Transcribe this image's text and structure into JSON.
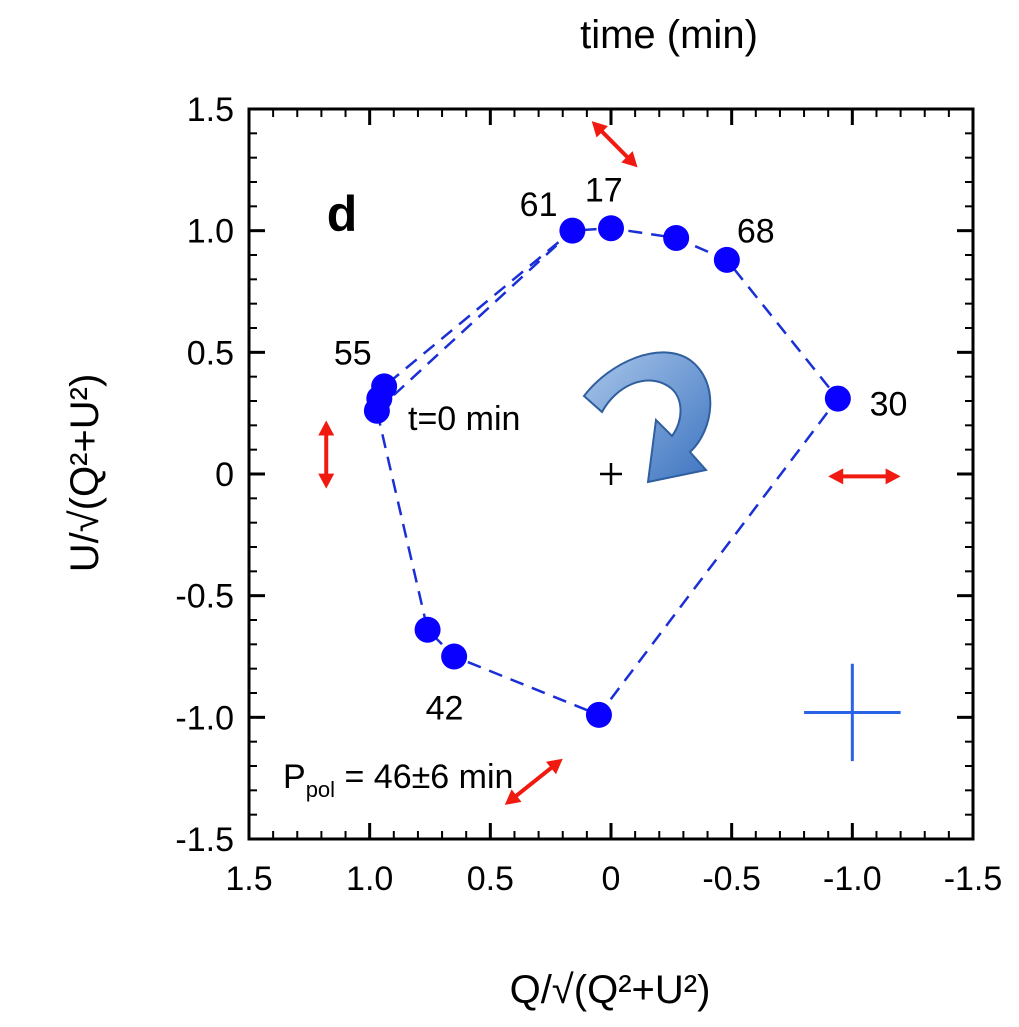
{
  "chart_data": {
    "type": "scatter",
    "panel_label": "d",
    "top_label": "time (min)",
    "xlabel": "Q/√(Q²+U²)",
    "ylabel": "U/√(Q²+U²)",
    "xlim": [
      1.5,
      -1.5
    ],
    "ylim": [
      -1.5,
      1.5
    ],
    "x_reversed": true,
    "x_ticks": [
      1.5,
      1.0,
      0.5,
      0,
      -0.5,
      -1.0,
      -1.5
    ],
    "x_tick_labels": [
      "1.5",
      "1.0",
      "0.5",
      "0",
      "-0.5",
      "-1.0",
      "-1.5"
    ],
    "y_ticks": [
      1.5,
      1.0,
      0.5,
      0,
      -0.5,
      -1.0,
      -1.5
    ],
    "y_tick_labels": [
      "1.5",
      "1.0",
      "0.5",
      "0",
      "-0.5",
      "-1.0",
      "-1.5"
    ],
    "points": [
      {
        "x": 0.97,
        "y": 0.26
      },
      {
        "x": 0.96,
        "y": 0.31
      },
      {
        "x": 0.94,
        "y": 0.36
      },
      {
        "x": 0.16,
        "y": 1.0
      },
      {
        "x": 0.0,
        "y": 1.01
      },
      {
        "x": -0.27,
        "y": 0.97
      },
      {
        "x": -0.48,
        "y": 0.88
      },
      {
        "x": -0.94,
        "y": 0.31
      },
      {
        "x": 0.05,
        "y": -0.99
      },
      {
        "x": 0.65,
        "y": -0.75
      },
      {
        "x": 0.76,
        "y": -0.64
      }
    ],
    "path_order": [
      0,
      3,
      4,
      5,
      6,
      7,
      8,
      9,
      10,
      0,
      1,
      2,
      3
    ],
    "point_labels": [
      {
        "text": "55",
        "x": 1.07,
        "y": 0.5
      },
      {
        "text": "61",
        "x": 0.3,
        "y": 1.11
      },
      {
        "text": "17",
        "x": 0.03,
        "y": 1.17
      },
      {
        "text": "68",
        "x": -0.6,
        "y": 1.0
      },
      {
        "text": "30",
        "x": -1.15,
        "y": 0.29
      },
      {
        "text": "42",
        "x": 0.69,
        "y": -0.96
      }
    ],
    "annotations": {
      "start_label": "t=0 min",
      "period_main": "P",
      "period_sub": "pol",
      "period_value": " = 46±6 min"
    },
    "center_marker": {
      "x": 0.0,
      "y": 0.0,
      "symbol": "+"
    },
    "error_cross": {
      "x": -1.0,
      "y": -0.98,
      "dx": 0.2,
      "dy": 0.2
    },
    "red_arrows": [
      {
        "x1": 0.08,
        "y1": 1.45,
        "x2": -0.11,
        "y2": 1.26
      },
      {
        "x1": 1.18,
        "y1": 0.22,
        "x2": 1.18,
        "y2": -0.06
      },
      {
        "x1": -0.9,
        "y1": -0.01,
        "x2": -1.2,
        "y2": -0.01
      },
      {
        "x1": 0.44,
        "y1": -1.36,
        "x2": 0.2,
        "y2": -1.17
      }
    ],
    "colors": {
      "points": "#0a00ff",
      "path": "#1a2fd6",
      "arrows": "#f01a10",
      "error_cross": "#2b63e6",
      "rotation_arrow": "#5b8fcf"
    }
  }
}
